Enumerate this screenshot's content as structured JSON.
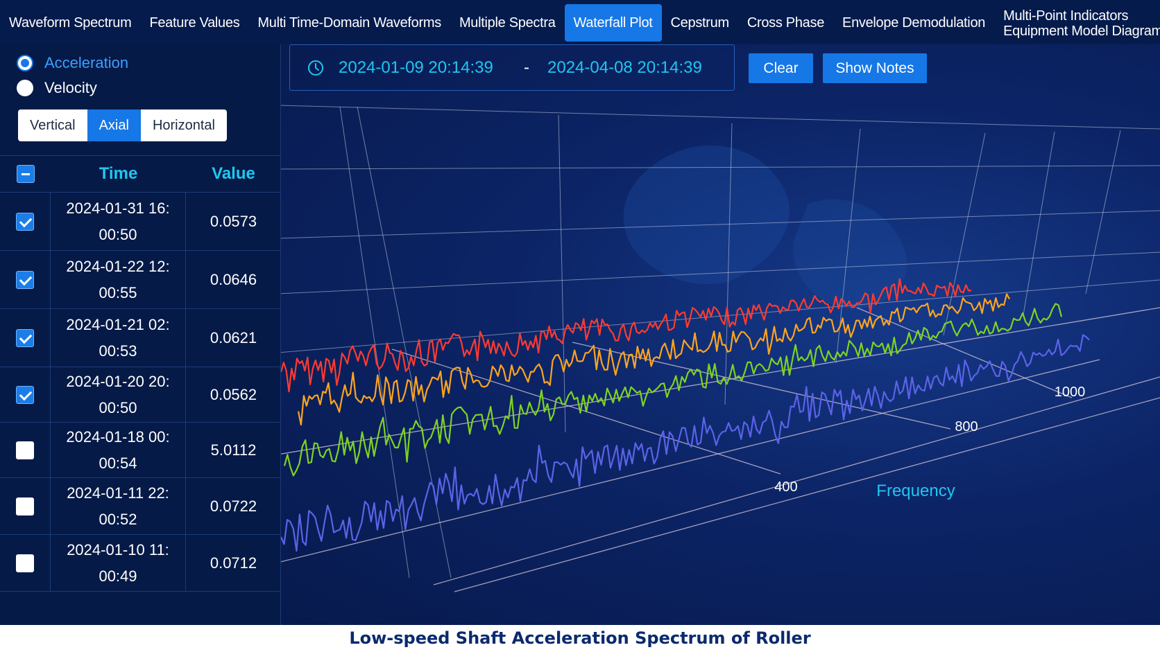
{
  "tabs": [
    {
      "label": "Waveform Spectrum",
      "active": false
    },
    {
      "label": "Feature Values",
      "active": false
    },
    {
      "label": "Multi Time-Domain Waveforms",
      "active": false
    },
    {
      "label": "Multiple Spectra",
      "active": false
    },
    {
      "label": "Waterfall Plot",
      "active": true
    },
    {
      "label": "Cepstrum",
      "active": false
    },
    {
      "label": "Cross Phase",
      "active": false
    },
    {
      "label": "Envelope Demodulation",
      "active": false
    }
  ],
  "tab_last": {
    "line1": "Multi-Point Indicators",
    "line2": "Equipment Model Diagram"
  },
  "measure": {
    "acceleration": "Acceleration",
    "velocity": "Velocity",
    "selected": "Acceleration"
  },
  "direction": {
    "vertical": "Vertical",
    "axial": "Axial",
    "horizontal": "Horizontal",
    "selected": "Axial"
  },
  "table": {
    "headers": {
      "time": "Time",
      "value": "Value"
    },
    "rows": [
      {
        "time_line1": "2024-01-31 16:",
        "time_line2": "00:50",
        "value": "0.0573",
        "checked": true
      },
      {
        "time_line1": "2024-01-22 12:",
        "time_line2": "00:55",
        "value": "0.0646",
        "checked": true
      },
      {
        "time_line1": "2024-01-21 02:",
        "time_line2": "00:53",
        "value": "0.0621",
        "checked": true
      },
      {
        "time_line1": "2024-01-20 20:",
        "time_line2": "00:50",
        "value": "0.0562",
        "checked": true
      },
      {
        "time_line1": "2024-01-18 00:",
        "time_line2": "00:54",
        "value": "5.0112",
        "checked": false
      },
      {
        "time_line1": "2024-01-11 22:",
        "time_line2": "00:52",
        "value": "0.0722",
        "checked": false
      },
      {
        "time_line1": "2024-01-10 11:",
        "time_line2": "00:49",
        "value": "0.0712",
        "checked": false
      }
    ]
  },
  "date_range": {
    "start": "2024-01-09 20:14:39",
    "separator": "-",
    "end": "2024-04-08 20:14:39"
  },
  "buttons": {
    "clear": "Clear",
    "show_notes": "Show Notes"
  },
  "chart_data": {
    "type": "line",
    "subtype": "3d-waterfall",
    "xlabel": "Frequency",
    "x_ticks": [
      "400",
      "800",
      "1000"
    ],
    "series": [
      {
        "color": "#ff3b30",
        "start": 0.3,
        "end": 0.62
      },
      {
        "color": "#ffa51e",
        "start": 0.25,
        "end": 0.58
      },
      {
        "color": "#7ed321",
        "start": 0.18,
        "end": 0.55
      },
      {
        "color": "#5b63e8",
        "start": 0.12,
        "end": 0.52
      }
    ]
  },
  "caption": "Low-speed Shaft Acceleration Spectrum of Roller"
}
